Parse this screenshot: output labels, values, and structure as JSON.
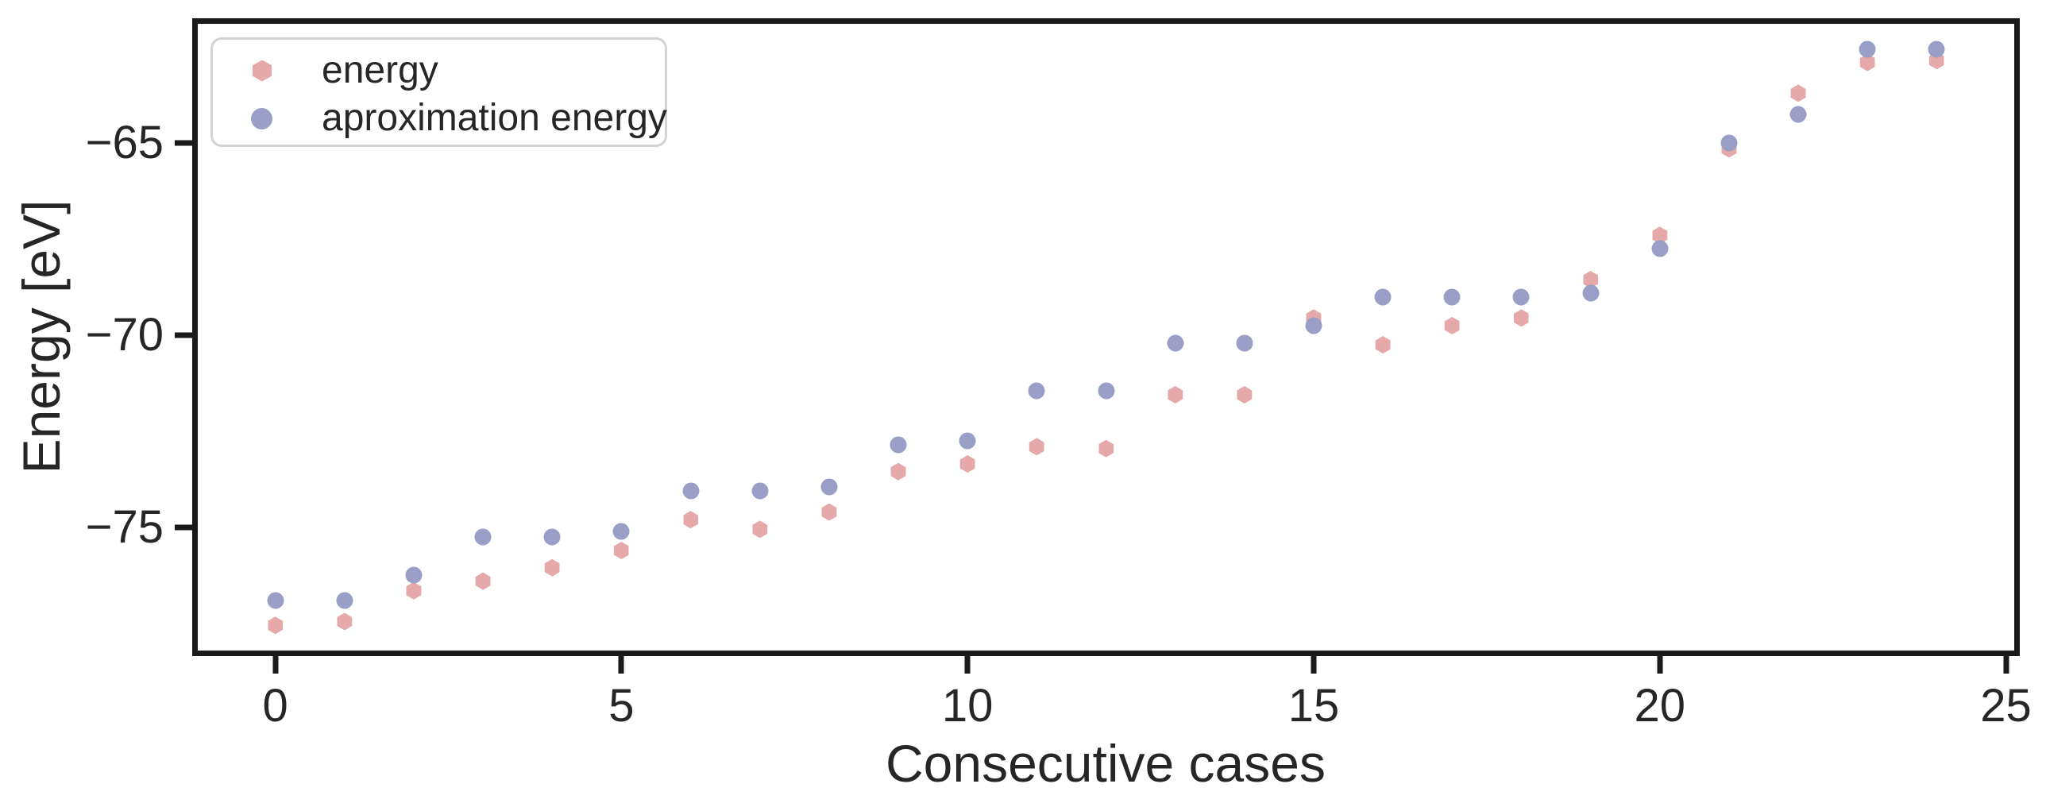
{
  "figure": {
    "xlabel": "Consecutive cases",
    "ylabel": "Energy [eV]"
  },
  "legend": {
    "items": [
      {
        "label": "energy",
        "marker": "hexagon-icon",
        "color": "#e6a9aa"
      },
      {
        "label": "aproximation energy",
        "marker": "circle-icon",
        "color": "#999fc6"
      }
    ]
  },
  "axes": {
    "xtick_labels": [
      "0",
      "5",
      "10",
      "15",
      "20",
      "25"
    ],
    "ytick_labels": [
      "−65",
      "−70",
      "−75"
    ]
  },
  "chart_data": {
    "type": "scatter",
    "title": "",
    "xlabel": "Consecutive cases",
    "ylabel": "Energy [eV]",
    "x": [
      0,
      1,
      2,
      3,
      4,
      5,
      6,
      7,
      8,
      9,
      10,
      11,
      12,
      13,
      14,
      15,
      16,
      17,
      18,
      19,
      20,
      21,
      22,
      23,
      24
    ],
    "series": [
      {
        "name": "energy",
        "marker": "hexagon",
        "color": "#e6a9aa",
        "values": [
          -77.55,
          -77.45,
          -76.65,
          -76.4,
          -76.05,
          -75.6,
          -74.8,
          -75.05,
          -74.6,
          -73.55,
          -73.35,
          -72.9,
          -72.95,
          -71.55,
          -71.55,
          -69.55,
          -70.25,
          -69.75,
          -69.55,
          -68.55,
          -67.4,
          -65.15,
          -63.7,
          -62.9,
          -62.85
        ]
      },
      {
        "name": "aproximation energy",
        "marker": "circle",
        "color": "#999fc6",
        "values": [
          -76.9,
          -76.9,
          -76.25,
          -75.25,
          -75.25,
          -75.1,
          -74.05,
          -74.05,
          -73.95,
          -72.85,
          -72.75,
          -71.45,
          -71.45,
          -70.2,
          -70.2,
          -69.75,
          -69.0,
          -69.0,
          -69.0,
          -68.9,
          -67.75,
          -65.0,
          -64.25,
          -62.55,
          -62.55
        ]
      }
    ],
    "xlim": [
      -1.2,
      25.2
    ],
    "ylim": [
      -78.35,
      -61.75
    ],
    "xticks": [
      0,
      5,
      10,
      15,
      20,
      25
    ],
    "yticks": [
      -65,
      -70,
      -75
    ],
    "grid": false,
    "legend_position": "upper left"
  }
}
